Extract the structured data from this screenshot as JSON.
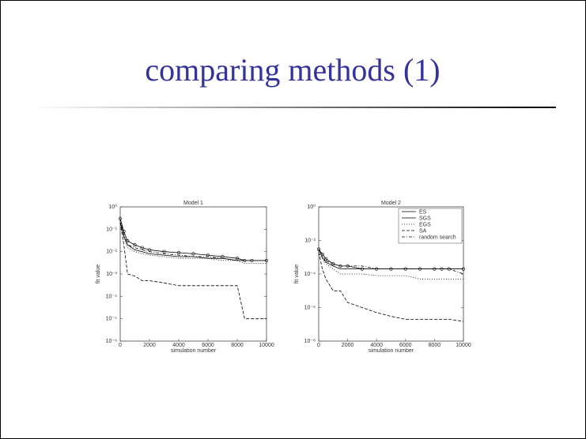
{
  "title": "comparing methods (1)",
  "chart_data": [
    {
      "type": "line",
      "title": "Model 1",
      "x_label": "simulation number",
      "y_label": "fit value",
      "log_y": true,
      "ylim": [
        1e-06,
        1
      ],
      "xlim": [
        0,
        10000
      ],
      "yticks": [
        {
          "value": 1e-06,
          "label": "10⁻⁶"
        },
        {
          "value": 1e-05,
          "label": "10⁻⁵"
        },
        {
          "value": 0.0001,
          "label": "10⁻⁴"
        },
        {
          "value": 0.001,
          "label": "10⁻³"
        },
        {
          "value": 0.01,
          "label": "10⁻²"
        },
        {
          "value": 0.1,
          "label": "10⁻¹"
        },
        {
          "value": 1,
          "label": "10⁰"
        }
      ],
      "xticks": [
        0,
        2000,
        4000,
        6000,
        8000,
        10000
      ],
      "x": [
        0,
        250,
        500,
        1000,
        1500,
        2000,
        3000,
        4000,
        5000,
        6000,
        7000,
        8000,
        8500,
        9000,
        10000
      ],
      "series": [
        {
          "color": "#000",
          "dash": "none",
          "values": [
            0.2,
            0.05,
            0.02,
            0.012,
            0.01,
            0.008,
            0.007,
            0.006,
            0.006,
            0.005,
            0.005,
            0.004,
            0.004,
            0.004,
            0.004
          ]
        },
        {
          "color": "#000",
          "dash": "none",
          "marker": "o",
          "values": [
            0.3,
            0.08,
            0.03,
            0.02,
            0.015,
            0.012,
            0.01,
            0.009,
            0.008,
            0.007,
            0.006,
            0.005,
            0.004,
            0.004,
            0.004
          ]
        },
        {
          "color": "#000",
          "dash": "4 2",
          "values": [
            0.2,
            0.02,
            0.001,
            0.0008,
            0.0005,
            0.0005,
            0.0004,
            0.0003,
            0.0003,
            0.0003,
            0.0003,
            0.0003,
            1e-05,
            1e-05,
            1e-05
          ]
        },
        {
          "color": "#000",
          "dash": "1 2",
          "values": [
            0.25,
            0.04,
            0.015,
            0.01,
            0.008,
            0.007,
            0.006,
            0.005,
            0.005,
            0.005,
            0.004,
            0.004,
            0.003,
            0.003,
            0.003
          ]
        },
        {
          "color": "#000",
          "dash": "4 2 1 2",
          "values": [
            0.3,
            0.06,
            0.02,
            0.015,
            0.012,
            0.01,
            0.008,
            0.007,
            0.006,
            0.006,
            0.005,
            0.004,
            0.004,
            0.004,
            0.004
          ]
        }
      ]
    },
    {
      "type": "line",
      "title": "Model 2",
      "x_label": "simulation number",
      "y_label": "fit value",
      "log_y": true,
      "ylim": [
        1e-08,
        1
      ],
      "xlim": [
        0,
        10000
      ],
      "legend": "upper right",
      "yticks": [
        {
          "value": 1e-08,
          "label": "10⁻⁸"
        },
        {
          "value": 1e-06,
          "label": "10⁻⁶"
        },
        {
          "value": 0.0001,
          "label": "10⁻⁴"
        },
        {
          "value": 0.01,
          "label": "10⁻²"
        },
        {
          "value": 1,
          "label": "10⁰"
        }
      ],
      "xticks": [
        0,
        2000,
        4000,
        6000,
        8000,
        10000
      ],
      "x": [
        0,
        250,
        500,
        1000,
        1500,
        2000,
        3000,
        4000,
        5000,
        6000,
        7000,
        8000,
        8500,
        9000,
        10000
      ],
      "series": [
        {
          "name": "ES",
          "color": "#000",
          "dash": "none",
          "values": [
            0.003,
            0.001,
            0.0005,
            0.0003,
            0.0002,
            0.0002,
            0.0002,
            0.0002,
            0.0002,
            0.0002,
            0.0002,
            0.0002,
            0.0002,
            0.0002,
            0.0002
          ]
        },
        {
          "name": "SGS",
          "color": "#000",
          "dash": "none",
          "marker": "o",
          "values": [
            0.003,
            0.0015,
            0.0008,
            0.0004,
            0.0003,
            0.0003,
            0.0002,
            0.0002,
            0.0002,
            0.0002,
            0.0002,
            0.0002,
            0.0002,
            0.0002,
            0.0002
          ]
        },
        {
          "name": "EGS",
          "color": "#000",
          "dash": "1 2",
          "values": [
            0.002,
            0.0008,
            0.0004,
            0.0002,
            0.0001,
            0.0001,
            0.0001,
            8e-05,
            8e-05,
            8e-05,
            5e-05,
            5e-05,
            5e-05,
            5e-05,
            5e-05
          ]
        },
        {
          "name": "SA",
          "color": "#000",
          "dash": "4 2",
          "values": [
            0.002,
            0.0002,
            5e-05,
            1e-05,
            1e-05,
            2e-06,
            1e-06,
            5e-07,
            3e-07,
            2e-07,
            2e-07,
            2e-07,
            2e-07,
            2e-07,
            1.5e-07
          ]
        },
        {
          "name": "random search",
          "color": "#000",
          "dash": "4 2 1 2",
          "values": [
            0.003,
            0.001,
            0.0006,
            0.0004,
            0.0003,
            0.0003,
            0.0003,
            0.0002,
            0.0002,
            0.0002,
            0.0002,
            0.0002,
            0.0002,
            0.0002,
            0.0001
          ]
        }
      ]
    }
  ]
}
